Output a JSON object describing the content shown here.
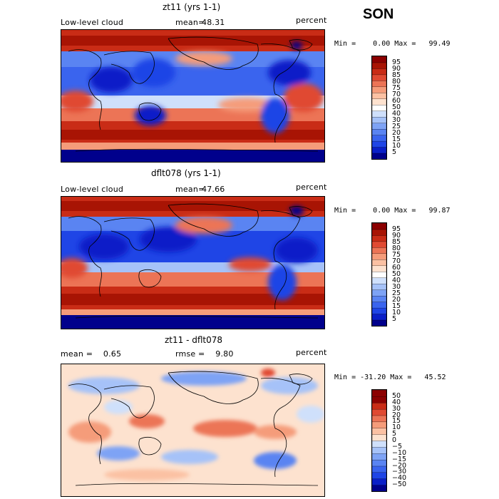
{
  "season": "SON",
  "colors": {
    "seq_top": [
      "#00008c",
      "#0a1fc8",
      "#1f45e6",
      "#3a64ee",
      "#5a84f2",
      "#7ea3f5",
      "#a6c2f8",
      "#cfe0fb",
      "#ffffff",
      "#fde2cf",
      "#fbc1a3",
      "#f59c7a",
      "#ec7456",
      "#e04a32",
      "#c92c16",
      "#a81404",
      "#8c0000"
    ],
    "seq_mid": [
      "#00008c",
      "#0a1fc8",
      "#1f45e6",
      "#3a64ee",
      "#5a84f2",
      "#7ea3f5",
      "#a6c2f8",
      "#cfe0fb",
      "#fde2cf",
      "#fbc1a3",
      "#f59c7a",
      "#ec7456",
      "#e04a32",
      "#c92c16",
      "#a81404",
      "#8c0000"
    ],
    "diff": [
      "#00008c",
      "#0a1fc8",
      "#1f45e6",
      "#3a64ee",
      "#5a84f2",
      "#7ea3f5",
      "#a6c2f8",
      "#cfe0fb",
      "#fde2cf",
      "#fbc1a3",
      "#f59c7a",
      "#ec7456",
      "#e04a32",
      "#c92c16",
      "#8c0000"
    ]
  },
  "panels": [
    {
      "title": "zt11 (yrs 1-1)",
      "variable": "Low-level cloud",
      "stat_label": "mean=",
      "stat_value": "48.31",
      "units": "percent",
      "minmax": "Min =    0.00 Max =   99.49",
      "colorbar_ticks": [
        "95",
        "90",
        "85",
        "80",
        "75",
        "70",
        "60",
        "50",
        "40",
        "30",
        "25",
        "20",
        "15",
        "10",
        "5"
      ]
    },
    {
      "title": "dflt078 (yrs 1-1)",
      "variable": "Low-level cloud",
      "stat_label": "mean=",
      "stat_value": "47.66",
      "units": "percent",
      "minmax": "Min =    0.00 Max =   99.87",
      "colorbar_ticks": [
        "95",
        "90",
        "85",
        "80",
        "75",
        "70",
        "60",
        "50",
        "40",
        "30",
        "25",
        "20",
        "15",
        "10",
        "5"
      ]
    },
    {
      "title": "zt11 - dflt078",
      "stat1": "mean =    0.65",
      "stat2": "rmse =    9.80",
      "units": "percent",
      "minmax": "Min = -31.20 Max =   45.52",
      "colorbar_ticks": [
        "50",
        "40",
        "30",
        "20",
        "15",
        "10",
        "5",
        "0",
        "−5",
        "−10",
        "−15",
        "−20",
        "−30",
        "−40",
        "−50"
      ]
    }
  ],
  "chart_data": [
    {
      "type": "heatmap",
      "title": "zt11 (yrs 1-1)",
      "subtitle": "Low-level cloud",
      "units": "percent",
      "mean": 48.31,
      "min": 0.0,
      "max": 99.49,
      "contour_levels": [
        5,
        10,
        15,
        20,
        25,
        30,
        40,
        50,
        60,
        70,
        75,
        80,
        85,
        90,
        95
      ],
      "map": "global lat-lon, continents outlined"
    },
    {
      "type": "heatmap",
      "title": "dflt078 (yrs 1-1)",
      "subtitle": "Low-level cloud",
      "units": "percent",
      "mean": 47.66,
      "min": 0.0,
      "max": 99.87,
      "contour_levels": [
        5,
        10,
        15,
        20,
        25,
        30,
        40,
        50,
        60,
        70,
        75,
        80,
        85,
        90,
        95
      ],
      "map": "global lat-lon, continents outlined"
    },
    {
      "type": "heatmap",
      "title": "zt11 - dflt078",
      "units": "percent",
      "mean": 0.65,
      "rmse": 9.8,
      "min": -31.2,
      "max": 45.52,
      "contour_levels": [
        -50,
        -40,
        -30,
        -20,
        -15,
        -10,
        -5,
        0,
        5,
        10,
        15,
        20,
        30,
        40,
        50
      ],
      "map": "global lat-lon, continents outlined"
    }
  ]
}
